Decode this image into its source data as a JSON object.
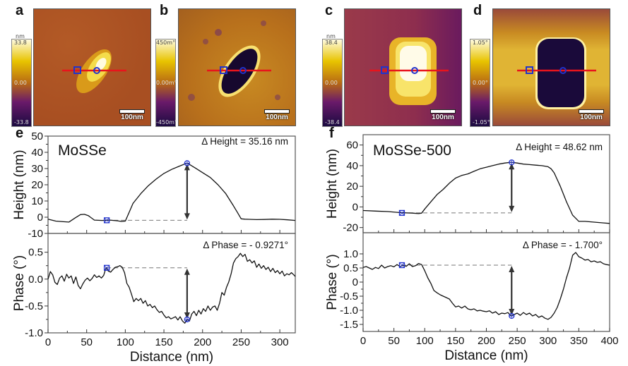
{
  "panels": {
    "a": {
      "letter": "a",
      "unit": "nm",
      "cbar_max": "33.8",
      "cbar_mid": "0.00",
      "cbar_min": "-33.8",
      "scalebar": "100nm"
    },
    "b": {
      "letter": "b",
      "unit": "",
      "cbar_max": "450m°",
      "cbar_mid": "0.00m°",
      "cbar_min": "-450m°",
      "scalebar": "100nm"
    },
    "c": {
      "letter": "c",
      "unit": "nm",
      "cbar_max": "38.4",
      "cbar_mid": "0.00",
      "cbar_min": "-38.4",
      "scalebar": "100nm"
    },
    "d": {
      "letter": "d",
      "unit": "",
      "cbar_max": "1.05°",
      "cbar_mid": "0.00°",
      "cbar_min": "-1.05°",
      "scalebar": "100nm"
    },
    "e": {
      "letter": "e"
    },
    "f": {
      "letter": "f"
    }
  },
  "colors": {
    "profile_line": "#e8141c",
    "marker": "#2233cc",
    "curve": "#111111",
    "arrow": "#333333",
    "dashed": "#777777"
  },
  "chart_data": [
    {
      "id": "e-height",
      "type": "line",
      "sample": "MoSSe",
      "annotation": "Δ Height = 35.16 nm",
      "ylabel": "Height (nm)",
      "xlabel": "",
      "xlim": [
        0,
        320
      ],
      "ylim": [
        -10,
        50
      ],
      "xticks": [
        0,
        50,
        100,
        150,
        200,
        250,
        300
      ],
      "yticks": [
        -10,
        0,
        10,
        20,
        30,
        40,
        50
      ],
      "ytick_labels": [
        "-10",
        "0",
        "10",
        "20",
        "30",
        "40",
        "50"
      ],
      "x": [
        0,
        10,
        20,
        27,
        35,
        42,
        47,
        52,
        60,
        70,
        80,
        90,
        95,
        100,
        105,
        110,
        120,
        130,
        140,
        150,
        160,
        170,
        180,
        190,
        200,
        210,
        220,
        230,
        240,
        245,
        250,
        255,
        260,
        270,
        280,
        290,
        300,
        310,
        320
      ],
      "y": [
        -1.2,
        -2.4,
        -2.8,
        -3.0,
        -0.5,
        1.6,
        1.8,
        1.0,
        -1.8,
        -2.0,
        -1.8,
        -2.2,
        -2.6,
        -2.4,
        3.0,
        8.5,
        14.5,
        19.5,
        23.5,
        27.0,
        29.5,
        31.5,
        33.4,
        30.5,
        27.5,
        24.5,
        20.0,
        14.5,
        7.0,
        3.0,
        -1.0,
        -1.2,
        -1.3,
        -1.5,
        -1.4,
        -1.2,
        -1.3,
        -1.6,
        -2.0
      ],
      "markers": [
        {
          "shape": "square-x",
          "x": 76,
          "y": -1.9
        },
        {
          "shape": "circle-plus",
          "x": 180,
          "y": 33.3
        }
      ],
      "dashed_level": -1.9,
      "arrow_x": 180
    },
    {
      "id": "e-phase",
      "type": "line",
      "sample": "MoSSe",
      "annotation": "Δ Phase = - 0.9271°",
      "ylabel": "Phase (°)",
      "xlabel": "Distance (nm)",
      "xlim": [
        0,
        320
      ],
      "ylim": [
        -1.0,
        0.85
      ],
      "xticks": [
        0,
        50,
        100,
        150,
        200,
        250,
        300
      ],
      "xtick_labels": [
        "0",
        "50",
        "100",
        "150",
        "200",
        "250",
        "300"
      ],
      "yticks": [
        -1.0,
        -0.5,
        0.0,
        0.5
      ],
      "ytick_labels": [
        "-1.0",
        "-0.5",
        "0.0",
        "0.5"
      ],
      "x": [
        0,
        3,
        6,
        9,
        12,
        15,
        18,
        21,
        24,
        27,
        30,
        33,
        36,
        39,
        42,
        45,
        48,
        51,
        54,
        57,
        60,
        63,
        66,
        69,
        72,
        75,
        78,
        81,
        84,
        87,
        90,
        93,
        96,
        99,
        102,
        105,
        108,
        111,
        114,
        117,
        120,
        123,
        126,
        129,
        132,
        135,
        138,
        141,
        144,
        147,
        150,
        153,
        156,
        159,
        162,
        165,
        168,
        171,
        174,
        177,
        180,
        183,
        186,
        189,
        192,
        195,
        198,
        201,
        204,
        207,
        210,
        213,
        216,
        219,
        222,
        225,
        228,
        231,
        234,
        237,
        240,
        243,
        246,
        249,
        252,
        255,
        258,
        261,
        264,
        267,
        270,
        273,
        276,
        279,
        282,
        285,
        288,
        291,
        294,
        297,
        300,
        303,
        306,
        309,
        312,
        315,
        318,
        320
      ],
      "y": [
        0.0,
        0.14,
        0.08,
        -0.06,
        -0.1,
        0.02,
        0.06,
        -0.04,
        0.09,
        0.02,
        0.06,
        -0.08,
        0.04,
        -0.12,
        -0.18,
        -0.09,
        -0.02,
        0.02,
        -0.03,
        0.01,
        0.08,
        0.03,
        0.06,
        0.02,
        0.07,
        0.21,
        0.15,
        0.13,
        0.18,
        0.22,
        0.23,
        0.25,
        0.22,
        0.12,
        -0.08,
        -0.15,
        -0.28,
        -0.42,
        -0.36,
        -0.4,
        -0.36,
        -0.45,
        -0.4,
        -0.5,
        -0.47,
        -0.53,
        -0.5,
        -0.57,
        -0.62,
        -0.6,
        -0.67,
        -0.72,
        -0.7,
        -0.74,
        -0.72,
        -0.7,
        -0.76,
        -0.7,
        -0.78,
        -0.82,
        -0.75,
        -0.78,
        -0.65,
        -0.6,
        -0.68,
        -0.58,
        -0.65,
        -0.55,
        -0.6,
        -0.5,
        -0.58,
        -0.52,
        -0.5,
        -0.58,
        -0.45,
        -0.25,
        -0.3,
        -0.15,
        -0.05,
        0.1,
        0.3,
        0.38,
        0.42,
        0.48,
        0.42,
        0.46,
        0.33,
        0.36,
        0.3,
        0.34,
        0.22,
        0.28,
        0.2,
        0.25,
        0.18,
        0.22,
        0.14,
        0.2,
        0.12,
        0.16,
        0.1,
        0.15,
        0.06,
        0.1,
        0.08,
        0.12,
        0.08,
        0.05
      ],
      "markers": [
        {
          "shape": "square-x",
          "x": 76,
          "y": 0.21
        },
        {
          "shape": "circle-plus",
          "x": 180,
          "y": -0.75
        }
      ],
      "dashed_level": 0.21,
      "arrow_x": 180
    },
    {
      "id": "f-height",
      "type": "line",
      "sample": "MoSSe-500",
      "annotation": "Δ Height = 48.62 nm",
      "ylabel": "Height (nm)",
      "xlabel": "",
      "xlim": [
        0,
        400
      ],
      "ylim": [
        -25,
        70
      ],
      "xticks": [
        0,
        50,
        100,
        150,
        200,
        250,
        300,
        350,
        400
      ],
      "yticks": [
        -20,
        0,
        20,
        40,
        60
      ],
      "ytick_labels": [
        "-20",
        "0",
        "20",
        "40",
        "60"
      ],
      "x": [
        0,
        20,
        40,
        60,
        80,
        90,
        95,
        100,
        110,
        120,
        130,
        140,
        150,
        160,
        170,
        180,
        190,
        200,
        210,
        220,
        230,
        240,
        250,
        260,
        270,
        280,
        290,
        300,
        305,
        310,
        320,
        330,
        340,
        350,
        360,
        370,
        380,
        390,
        400
      ],
      "y": [
        -3.5,
        -4.0,
        -4.5,
        -5.5,
        -6.0,
        -6.5,
        -6.0,
        -2.0,
        5.0,
        12.0,
        17.0,
        23.0,
        28.0,
        30.5,
        32.0,
        34.5,
        37.0,
        38.5,
        40.0,
        41.5,
        42.5,
        43.3,
        42.5,
        41.5,
        41.0,
        40.5,
        40.0,
        39.0,
        37.0,
        33.0,
        20.0,
        5.0,
        -8.0,
        -14.0,
        -14.0,
        -14.5,
        -15.0,
        -15.5,
        -16.0
      ],
      "markers": [
        {
          "shape": "square-x",
          "x": 63,
          "y": -5.8
        },
        {
          "shape": "circle-plus",
          "x": 241,
          "y": 43.2
        }
      ],
      "dashed_level": -5.8,
      "arrow_x": 241
    },
    {
      "id": "f-phase",
      "type": "line",
      "sample": "MoSSe-500",
      "annotation": "Δ Phase = - 1.700°",
      "ylabel": "Phase (°)",
      "xlabel": "Distance (nm)",
      "xlim": [
        0,
        400
      ],
      "ylim": [
        -1.75,
        1.75
      ],
      "xticks": [
        0,
        50,
        100,
        150,
        200,
        250,
        300,
        350,
        400
      ],
      "xtick_labels": [
        "0",
        "50",
        "100",
        "150",
        "200",
        "250",
        "300",
        "350",
        "400"
      ],
      "yticks": [
        -1.5,
        -1.0,
        -0.5,
        0,
        0.5,
        1.0
      ],
      "ytick_labels": [
        "-1.5",
        "-1.0",
        "-0.5",
        "0",
        "0.5",
        "1.0"
      ],
      "x": [
        0,
        5,
        10,
        15,
        20,
        25,
        30,
        35,
        40,
        45,
        50,
        55,
        60,
        65,
        70,
        75,
        80,
        85,
        90,
        95,
        100,
        105,
        110,
        115,
        120,
        125,
        130,
        135,
        140,
        145,
        150,
        155,
        160,
        165,
        170,
        175,
        180,
        185,
        190,
        195,
        200,
        205,
        210,
        215,
        220,
        225,
        230,
        235,
        240,
        245,
        250,
        255,
        260,
        265,
        270,
        275,
        280,
        285,
        290,
        295,
        300,
        305,
        310,
        315,
        320,
        325,
        330,
        335,
        340,
        345,
        350,
        355,
        360,
        365,
        370,
        375,
        380,
        385,
        390,
        395,
        400
      ],
      "y": [
        0.52,
        0.55,
        0.5,
        0.45,
        0.52,
        0.48,
        0.6,
        0.5,
        0.55,
        0.58,
        0.54,
        0.62,
        0.55,
        0.6,
        0.56,
        0.65,
        0.55,
        0.58,
        0.66,
        0.62,
        0.4,
        0.15,
        -0.05,
        -0.3,
        -0.38,
        -0.45,
        -0.5,
        -0.55,
        -0.6,
        -0.75,
        -0.88,
        -0.85,
        -0.92,
        -0.85,
        -0.95,
        -0.98,
        -0.95,
        -1.02,
        -1.0,
        -1.03,
        -1.05,
        -1.02,
        -1.1,
        -1.05,
        -1.15,
        -1.1,
        -1.12,
        -1.08,
        -1.2,
        -1.15,
        -1.1,
        -1.18,
        -1.08,
        -1.15,
        -1.1,
        -1.2,
        -1.15,
        -1.25,
        -1.2,
        -1.28,
        -1.32,
        -1.25,
        -1.1,
        -0.9,
        -0.6,
        -0.25,
        0.15,
        0.5,
        0.95,
        1.05,
        0.9,
        0.85,
        0.78,
        0.8,
        0.72,
        0.75,
        0.7,
        0.72,
        0.65,
        0.62,
        0.6
      ],
      "markers": [
        {
          "shape": "square-x",
          "x": 63,
          "y": 0.6
        },
        {
          "shape": "circle-plus",
          "x": 241,
          "y": -1.2
        }
      ],
      "dashed_level": 0.6,
      "arrow_x": 241
    }
  ]
}
